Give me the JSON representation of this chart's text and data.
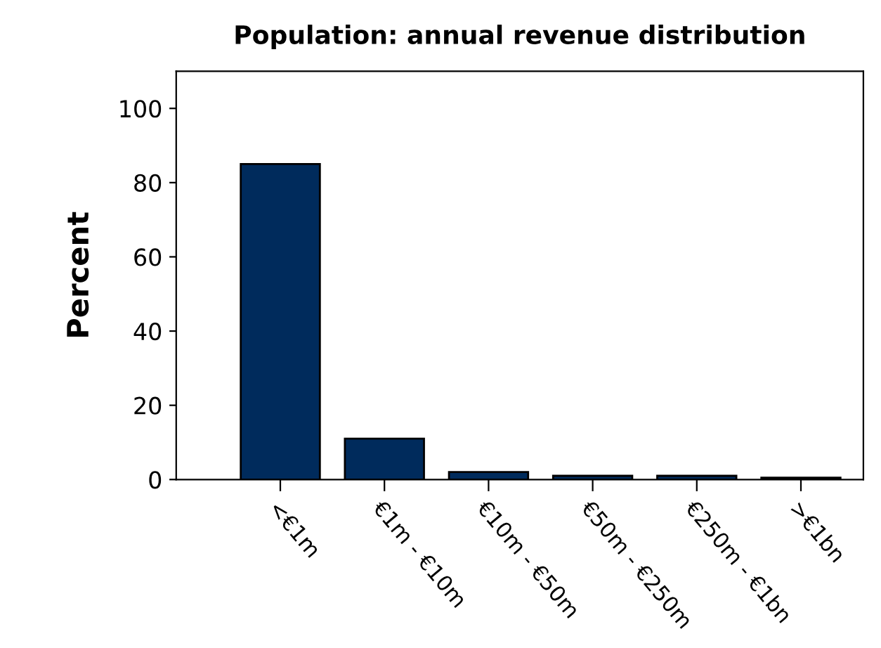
{
  "chart_data": {
    "type": "bar",
    "title": "Population: annual revenue distribution",
    "ylabel": "Percent",
    "categories": [
      "<€1m",
      "€1m - €10m",
      "€10m - €50m",
      "€50m - €250m",
      "€250m - €1bn",
      ">€1bn"
    ],
    "values": [
      85,
      11,
      2,
      1,
      1,
      0.5
    ],
    "color": "#002b5c",
    "ylim": [
      0,
      110
    ],
    "yticks": [
      0,
      20,
      40,
      60,
      80,
      100
    ],
    "grid": false,
    "legend": false
  }
}
